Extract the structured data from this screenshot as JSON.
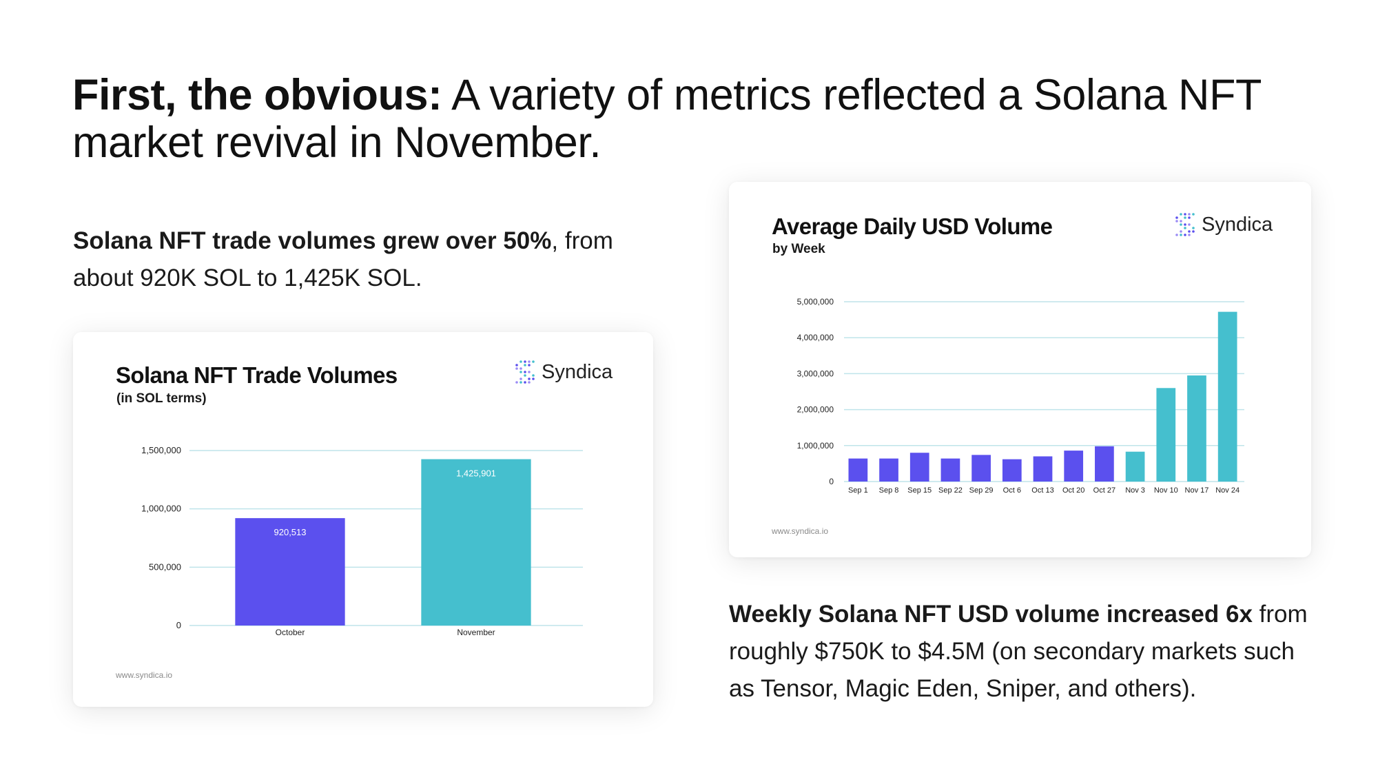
{
  "headline": {
    "bold": "First, the obvious:",
    "rest": "A variety of metrics reflected a Solana NFT market revival in November."
  },
  "left_paragraph": {
    "bold": "Solana NFT trade volumes grew over 50%",
    "rest": ", from about 920K SOL to 1,425K SOL."
  },
  "right_paragraph": {
    "bold": "Weekly Solana NFT USD volume increased 6x",
    "rest": " from roughly $750K to $4.5M (on secondary markets such as Tensor, Magic Eden, Sniper, and others)."
  },
  "brand": {
    "name": "Syndica",
    "url": "www.syndica.io"
  },
  "colors": {
    "purple": "#5b50ee",
    "teal": "#45bfce",
    "grid": "#bfe4ea",
    "text": "#111111"
  },
  "chart_data": [
    {
      "type": "bar",
      "title": "Solana NFT Trade Volumes",
      "subtitle": "(in SOL terms)",
      "categories": [
        "October",
        "November"
      ],
      "values": [
        920513,
        1425901
      ],
      "data_labels": [
        "920,513",
        "1,425,901"
      ],
      "bar_colors": [
        "#5b50ee",
        "#45bfce"
      ],
      "yticks": [
        0,
        500000,
        1000000,
        1500000
      ],
      "ytick_labels": [
        "0",
        "500,000",
        "1,000,000",
        "1,500,000"
      ],
      "ylim": [
        0,
        1500000
      ],
      "grid": true
    },
    {
      "type": "bar",
      "title": "Average Daily USD Volume",
      "subtitle": "by Week",
      "categories": [
        "Sep 1",
        "Sep 8",
        "Sep 15",
        "Sep 22",
        "Sep 29",
        "Oct 6",
        "Oct 13",
        "Oct 20",
        "Oct 27",
        "Nov 3",
        "Nov 10",
        "Nov 17",
        "Nov 24"
      ],
      "values": [
        640000,
        640000,
        800000,
        640000,
        740000,
        620000,
        700000,
        860000,
        980000,
        830000,
        2600000,
        2950000,
        4720000
      ],
      "bar_colors": [
        "#5b50ee",
        "#5b50ee",
        "#5b50ee",
        "#5b50ee",
        "#5b50ee",
        "#5b50ee",
        "#5b50ee",
        "#5b50ee",
        "#5b50ee",
        "#45bfce",
        "#45bfce",
        "#45bfce",
        "#45bfce"
      ],
      "yticks": [
        0,
        1000000,
        2000000,
        3000000,
        4000000,
        5000000
      ],
      "ytick_labels": [
        "0",
        "1,000,000",
        "2,000,000",
        "3,000,000",
        "4,000,000",
        "5,000,000"
      ],
      "ylim": [
        0,
        5000000
      ],
      "grid": true
    }
  ]
}
